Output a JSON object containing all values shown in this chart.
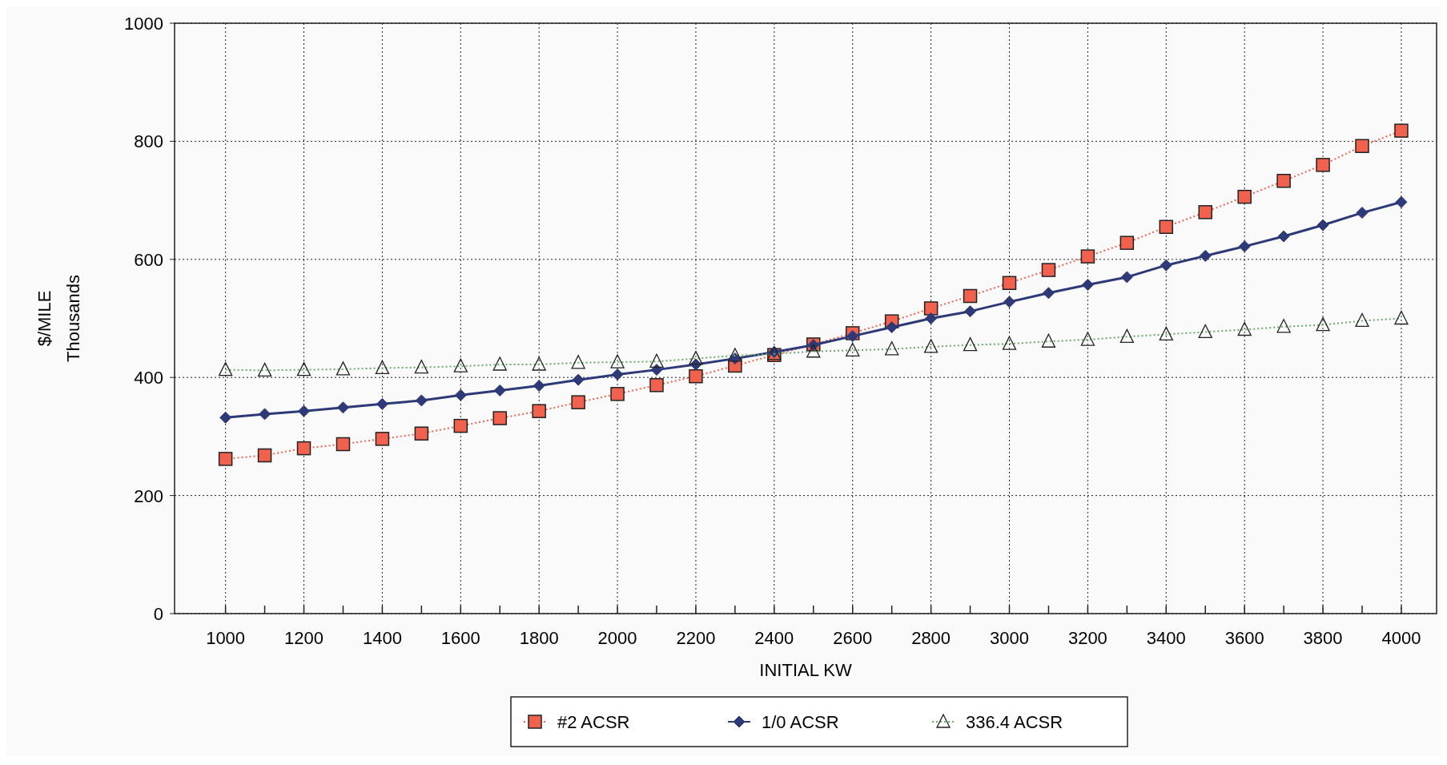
{
  "chart_data": {
    "type": "line",
    "xlabel": "INITIAL KW",
    "ylabel": "$/MILE\nThousands",
    "x": [
      1000,
      1100,
      1200,
      1300,
      1400,
      1500,
      1600,
      1700,
      1800,
      1900,
      2000,
      2100,
      2200,
      2300,
      2400,
      2500,
      2600,
      2700,
      2800,
      2900,
      3000,
      3100,
      3200,
      3300,
      3400,
      3500,
      3600,
      3700,
      3800,
      3900,
      4000
    ],
    "series": [
      {
        "name": "#2 ACSR",
        "color": "#f0624d",
        "marker": "square",
        "line_style": "dotted",
        "values": [
          262,
          268,
          280,
          287,
          296,
          305,
          318,
          331,
          343,
          358,
          372,
          387,
          402,
          420,
          438,
          456,
          475,
          495,
          517,
          538,
          560,
          582,
          605,
          628,
          655,
          680,
          706,
          733,
          760,
          792,
          818
        ]
      },
      {
        "name": "1/0 ACSR",
        "color": "#2e3a78",
        "marker": "diamond",
        "line_style": "solid",
        "values": [
          332,
          338,
          343,
          349,
          355,
          361,
          370,
          378,
          386,
          396,
          405,
          413,
          422,
          432,
          443,
          455,
          470,
          485,
          500,
          512,
          528,
          543,
          557,
          570,
          590,
          606,
          622,
          639,
          658,
          679,
          697
        ]
      },
      {
        "name": "336.4 ACSR",
        "color": "#6aaa6a",
        "marker": "triangle",
        "line_style": "dotted",
        "values": [
          413,
          412,
          413,
          414,
          416,
          417,
          419,
          422,
          422,
          425,
          426,
          427,
          432,
          437,
          440,
          444,
          446,
          448,
          452,
          455,
          457,
          461,
          464,
          469,
          473,
          477,
          481,
          486,
          489,
          496,
          500
        ]
      }
    ],
    "xlim": [
      870,
      4090
    ],
    "xticks": [
      1000,
      {
        "value": 1100,
        "label": null
      },
      1200,
      {
        "value": 1300,
        "label": null
      },
      1400,
      {
        "value": 1500,
        "label": null
      },
      1600,
      {
        "value": 1700,
        "label": null
      },
      1800,
      {
        "value": 1900,
        "label": null
      },
      2000,
      {
        "value": 2100,
        "label": null
      },
      2200,
      {
        "value": 2300,
        "label": null
      },
      2400,
      {
        "value": 2500,
        "label": null
      },
      2600,
      {
        "value": 2700,
        "label": null
      },
      2800,
      {
        "value": 2900,
        "label": null
      },
      3000,
      {
        "value": 3100,
        "label": null
      },
      3200,
      {
        "value": 3300,
        "label": null
      },
      3400,
      {
        "value": 3500,
        "label": null
      },
      3600,
      {
        "value": 3700,
        "label": null
      },
      3800,
      {
        "value": 3900,
        "label": null
      },
      4000
    ],
    "ylim": [
      0,
      1000
    ],
    "yticks": [
      0,
      200,
      400,
      600,
      800,
      1000
    ],
    "grid": true,
    "legend": "bottom"
  }
}
